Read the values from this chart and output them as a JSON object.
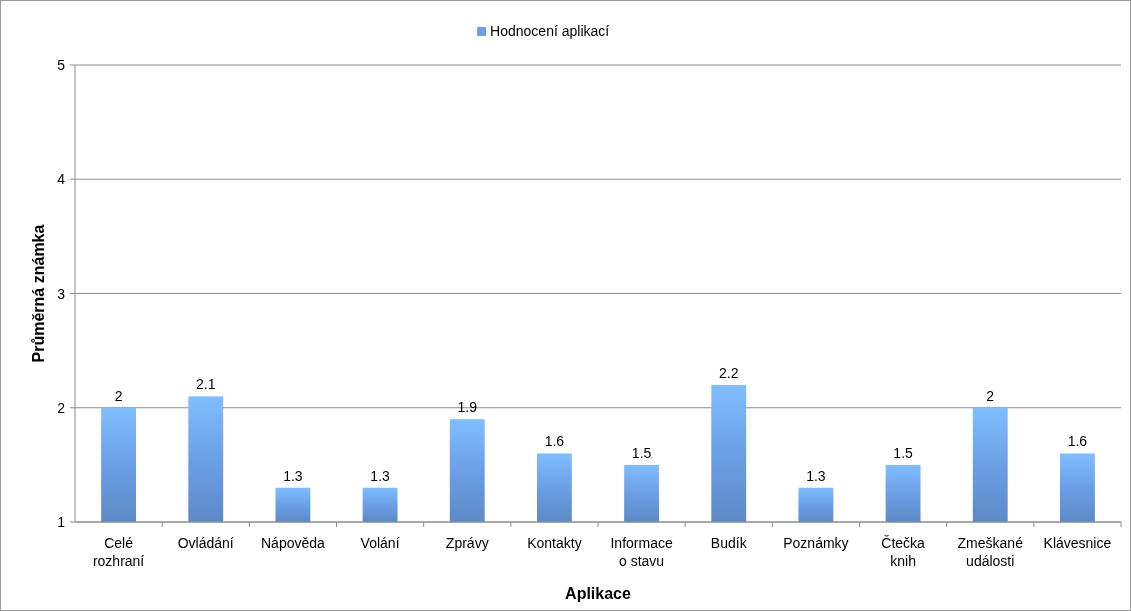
{
  "chart_data": {
    "type": "bar",
    "xlabel": "Aplikace",
    "ylabel": "Průměrná známka",
    "categories": [
      "Celé rozhraní",
      "Ovládání",
      "Nápověda",
      "Volání",
      "Zprávy",
      "Kontakty",
      "Informace o stavu",
      "Budík",
      "Poznámky",
      "Čtečka knih",
      "Zmeškané události",
      "Klávesnice"
    ],
    "series": [
      {
        "name": "Hodnocení aplikací",
        "color": "#6b9fe6",
        "values": [
          2,
          2.1,
          1.3,
          1.3,
          1.9,
          1.6,
          1.5,
          2.2,
          1.3,
          1.5,
          2,
          1.6
        ]
      }
    ],
    "ylim": [
      1,
      5
    ],
    "yticks": [
      1,
      2,
      3,
      4,
      5
    ],
    "grid": "y",
    "legend": "top",
    "data_labels": true
  }
}
